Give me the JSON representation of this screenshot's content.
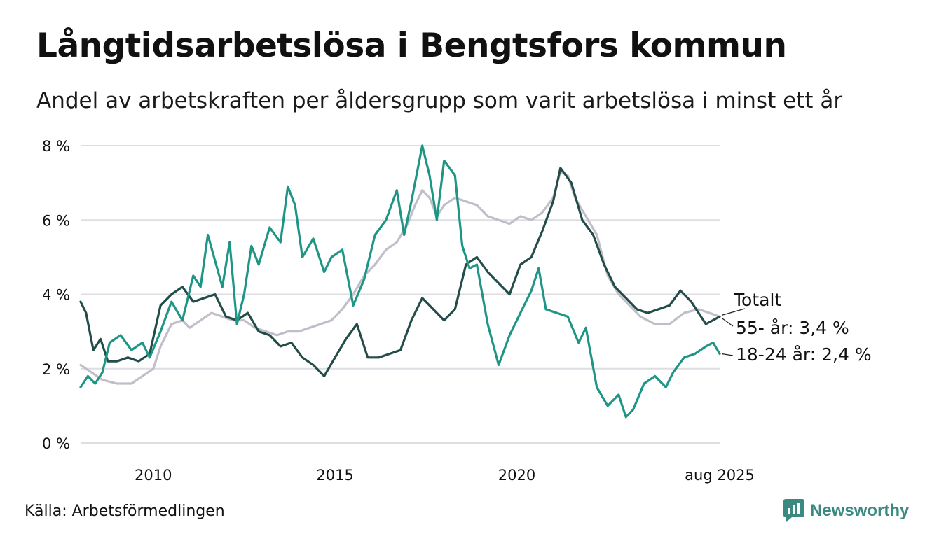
{
  "title": "Långtidsarbetslösa i Bengtsfors kommun",
  "subtitle": "Andel av arbetskraften per åldersgrupp som varit arbetslösa i minst ett år",
  "source": "Källa: Arbetsförmedlingen",
  "brand": "Newsworthy",
  "colors": {
    "totalt": "#c2bec9",
    "age55": "#234d49",
    "age1824": "#1e9585",
    "grid": "#dedde3",
    "brand": "#3a8a82"
  },
  "chart_data": {
    "type": "line",
    "title": "Långtidsarbetslösa i Bengtsfors kommun",
    "xlabel": "",
    "ylabel": "",
    "x_range": [
      2008.0,
      2025.58
    ],
    "ylim": [
      0,
      8
    ],
    "y_ticks": [
      0,
      2,
      4,
      6,
      8
    ],
    "y_tick_labels": [
      "0 %",
      "2 %",
      "4 %",
      "6 %",
      "8 %"
    ],
    "x_ticks": [
      2010,
      2015,
      2020,
      2025.58
    ],
    "x_tick_labels": [
      "2010",
      "2015",
      "2020",
      "aug 2025"
    ],
    "grid": "horizontal",
    "series": [
      {
        "name": "Totalt",
        "label": "Totalt",
        "color": "#c2bec9",
        "points": [
          [
            2008.0,
            2.1
          ],
          [
            2008.3,
            1.9
          ],
          [
            2008.6,
            1.7
          ],
          [
            2009.0,
            1.6
          ],
          [
            2009.4,
            1.6
          ],
          [
            2009.7,
            1.8
          ],
          [
            2010.0,
            2.0
          ],
          [
            2010.2,
            2.6
          ],
          [
            2010.5,
            3.2
          ],
          [
            2010.8,
            3.3
          ],
          [
            2011.0,
            3.1
          ],
          [
            2011.3,
            3.3
          ],
          [
            2011.6,
            3.5
          ],
          [
            2011.9,
            3.4
          ],
          [
            2012.2,
            3.3
          ],
          [
            2012.5,
            3.3
          ],
          [
            2012.8,
            3.1
          ],
          [
            2013.1,
            3.0
          ],
          [
            2013.4,
            2.9
          ],
          [
            2013.7,
            3.0
          ],
          [
            2014.0,
            3.0
          ],
          [
            2014.3,
            3.1
          ],
          [
            2014.6,
            3.2
          ],
          [
            2014.9,
            3.3
          ],
          [
            2015.2,
            3.6
          ],
          [
            2015.5,
            4.0
          ],
          [
            2015.8,
            4.5
          ],
          [
            2016.1,
            4.8
          ],
          [
            2016.4,
            5.2
          ],
          [
            2016.7,
            5.4
          ],
          [
            2017.0,
            5.9
          ],
          [
            2017.2,
            6.4
          ],
          [
            2017.4,
            6.8
          ],
          [
            2017.6,
            6.6
          ],
          [
            2017.8,
            6.1
          ],
          [
            2018.0,
            6.4
          ],
          [
            2018.3,
            6.6
          ],
          [
            2018.6,
            6.5
          ],
          [
            2018.9,
            6.4
          ],
          [
            2019.2,
            6.1
          ],
          [
            2019.5,
            6.0
          ],
          [
            2019.8,
            5.9
          ],
          [
            2020.1,
            6.1
          ],
          [
            2020.4,
            6.0
          ],
          [
            2020.7,
            6.2
          ],
          [
            2021.0,
            6.6
          ],
          [
            2021.2,
            7.3
          ],
          [
            2021.4,
            7.2
          ],
          [
            2021.6,
            6.6
          ],
          [
            2021.9,
            6.1
          ],
          [
            2022.2,
            5.6
          ],
          [
            2022.5,
            4.5
          ],
          [
            2022.8,
            4.0
          ],
          [
            2023.1,
            3.7
          ],
          [
            2023.4,
            3.4
          ],
          [
            2023.8,
            3.2
          ],
          [
            2024.2,
            3.2
          ],
          [
            2024.6,
            3.5
          ],
          [
            2025.0,
            3.6
          ],
          [
            2025.3,
            3.5
          ],
          [
            2025.58,
            3.4
          ]
        ]
      },
      {
        "name": "55- år",
        "label": "55- år: 3,4 %",
        "color": "#234d49",
        "points": [
          [
            2008.0,
            3.8
          ],
          [
            2008.15,
            3.5
          ],
          [
            2008.35,
            2.5
          ],
          [
            2008.55,
            2.8
          ],
          [
            2008.75,
            2.2
          ],
          [
            2009.0,
            2.2
          ],
          [
            2009.3,
            2.3
          ],
          [
            2009.6,
            2.2
          ],
          [
            2009.9,
            2.4
          ],
          [
            2010.2,
            3.7
          ],
          [
            2010.5,
            4.0
          ],
          [
            2010.8,
            4.2
          ],
          [
            2011.1,
            3.8
          ],
          [
            2011.4,
            3.9
          ],
          [
            2011.7,
            4.0
          ],
          [
            2012.0,
            3.4
          ],
          [
            2012.3,
            3.3
          ],
          [
            2012.6,
            3.5
          ],
          [
            2012.9,
            3.0
          ],
          [
            2013.2,
            2.9
          ],
          [
            2013.5,
            2.6
          ],
          [
            2013.8,
            2.7
          ],
          [
            2014.1,
            2.3
          ],
          [
            2014.4,
            2.1
          ],
          [
            2014.7,
            1.8
          ],
          [
            2015.0,
            2.3
          ],
          [
            2015.3,
            2.8
          ],
          [
            2015.6,
            3.2
          ],
          [
            2015.9,
            2.3
          ],
          [
            2016.2,
            2.3
          ],
          [
            2016.5,
            2.4
          ],
          [
            2016.8,
            2.5
          ],
          [
            2017.1,
            3.3
          ],
          [
            2017.4,
            3.9
          ],
          [
            2017.7,
            3.6
          ],
          [
            2018.0,
            3.3
          ],
          [
            2018.3,
            3.6
          ],
          [
            2018.6,
            4.8
          ],
          [
            2018.9,
            5.0
          ],
          [
            2019.2,
            4.6
          ],
          [
            2019.5,
            4.3
          ],
          [
            2019.8,
            4.0
          ],
          [
            2020.1,
            4.8
          ],
          [
            2020.4,
            5.0
          ],
          [
            2020.7,
            5.7
          ],
          [
            2021.0,
            6.5
          ],
          [
            2021.2,
            7.4
          ],
          [
            2021.5,
            7.0
          ],
          [
            2021.8,
            6.0
          ],
          [
            2022.1,
            5.6
          ],
          [
            2022.4,
            4.8
          ],
          [
            2022.7,
            4.2
          ],
          [
            2023.0,
            3.9
          ],
          [
            2023.3,
            3.6
          ],
          [
            2023.6,
            3.5
          ],
          [
            2023.9,
            3.6
          ],
          [
            2024.2,
            3.7
          ],
          [
            2024.5,
            4.1
          ],
          [
            2024.8,
            3.8
          ],
          [
            2025.2,
            3.2
          ],
          [
            2025.58,
            3.4
          ]
        ]
      },
      {
        "name": "18-24 år",
        "label": "18-24 år: 2,4 %",
        "color": "#1e9585",
        "points": [
          [
            2008.0,
            1.5
          ],
          [
            2008.2,
            1.8
          ],
          [
            2008.4,
            1.6
          ],
          [
            2008.6,
            1.9
          ],
          [
            2008.8,
            2.7
          ],
          [
            2009.1,
            2.9
          ],
          [
            2009.4,
            2.5
          ],
          [
            2009.7,
            2.7
          ],
          [
            2009.9,
            2.3
          ],
          [
            2010.2,
            3.0
          ],
          [
            2010.5,
            3.8
          ],
          [
            2010.8,
            3.3
          ],
          [
            2011.1,
            4.5
          ],
          [
            2011.3,
            4.2
          ],
          [
            2011.5,
            5.6
          ],
          [
            2011.7,
            4.9
          ],
          [
            2011.9,
            4.2
          ],
          [
            2012.1,
            5.4
          ],
          [
            2012.3,
            3.2
          ],
          [
            2012.5,
            4.0
          ],
          [
            2012.7,
            5.3
          ],
          [
            2012.9,
            4.8
          ],
          [
            2013.2,
            5.8
          ],
          [
            2013.5,
            5.4
          ],
          [
            2013.7,
            6.9
          ],
          [
            2013.9,
            6.4
          ],
          [
            2014.1,
            5.0
          ],
          [
            2014.4,
            5.5
          ],
          [
            2014.7,
            4.6
          ],
          [
            2014.9,
            5.0
          ],
          [
            2015.2,
            5.2
          ],
          [
            2015.5,
            3.7
          ],
          [
            2015.8,
            4.4
          ],
          [
            2016.1,
            5.6
          ],
          [
            2016.4,
            6.0
          ],
          [
            2016.7,
            6.8
          ],
          [
            2016.9,
            5.6
          ],
          [
            2017.1,
            6.5
          ],
          [
            2017.4,
            8.0
          ],
          [
            2017.6,
            7.2
          ],
          [
            2017.8,
            6.0
          ],
          [
            2018.0,
            7.6
          ],
          [
            2018.3,
            7.2
          ],
          [
            2018.5,
            5.3
          ],
          [
            2018.7,
            4.7
          ],
          [
            2018.9,
            4.8
          ],
          [
            2019.2,
            3.2
          ],
          [
            2019.5,
            2.1
          ],
          [
            2019.8,
            2.9
          ],
          [
            2020.1,
            3.5
          ],
          [
            2020.4,
            4.1
          ],
          [
            2020.6,
            4.7
          ],
          [
            2020.8,
            3.6
          ],
          [
            2021.1,
            3.5
          ],
          [
            2021.4,
            3.4
          ],
          [
            2021.7,
            2.7
          ],
          [
            2021.9,
            3.1
          ],
          [
            2022.2,
            1.5
          ],
          [
            2022.5,
            1.0
          ],
          [
            2022.8,
            1.3
          ],
          [
            2023.0,
            0.7
          ],
          [
            2023.2,
            0.9
          ],
          [
            2023.5,
            1.6
          ],
          [
            2023.8,
            1.8
          ],
          [
            2024.1,
            1.5
          ],
          [
            2024.3,
            1.9
          ],
          [
            2024.6,
            2.3
          ],
          [
            2024.9,
            2.4
          ],
          [
            2025.2,
            2.6
          ],
          [
            2025.4,
            2.7
          ],
          [
            2025.58,
            2.4
          ]
        ]
      }
    ]
  }
}
